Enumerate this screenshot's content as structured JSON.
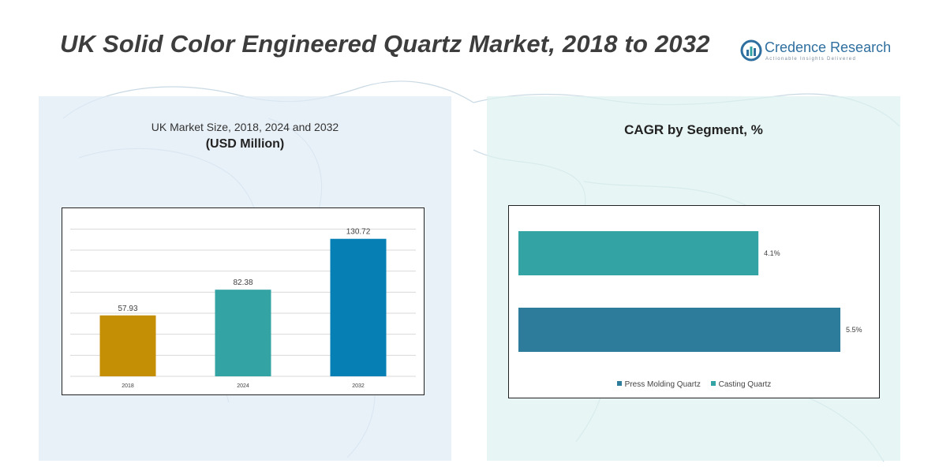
{
  "title": "UK Solid Color Engineered Quartz Market, 2018 to 2032",
  "brand": {
    "name": "Credence Research",
    "tagline": "Actionable Insights Delivered",
    "color": "#2f6f9f"
  },
  "left_panel": {
    "title_line1": "UK Market Size, 2018, 2024 and 2032",
    "title_line2": "(USD Million)"
  },
  "right_panel": {
    "title": "CAGR by Segment, %"
  },
  "chart_data": [
    {
      "type": "bar",
      "title": "UK Market Size, 2018, 2024 and 2032",
      "subtitle": "(USD Million)",
      "categories": [
        "2018",
        "2024",
        "2032"
      ],
      "values": [
        57.93,
        82.38,
        130.72
      ],
      "value_labels": [
        "57.93",
        "82.38",
        "130.72"
      ],
      "colors": [
        "#c48f04",
        "#34a3a3",
        "#0680b4"
      ],
      "ylim": [
        0,
        150
      ],
      "grid": true,
      "legend": "none"
    },
    {
      "type": "bar",
      "orientation": "horizontal",
      "title": "CAGR by Segment, %",
      "series": [
        {
          "name": "Casting Quartz",
          "value": 4.1,
          "label": "4.1%",
          "color": "#34a3a3"
        },
        {
          "name": "Press Molding Quartz",
          "value": 5.5,
          "label": "5.5%",
          "color": "#2d7c9c"
        }
      ],
      "legend_items": [
        {
          "name": "Press Molding Quartz",
          "color": "#2d7c9c"
        },
        {
          "name": "Casting Quartz",
          "color": "#34a3a3"
        }
      ],
      "xlim": [
        0,
        5.5
      ],
      "grid": false,
      "legend": "bottom"
    }
  ]
}
